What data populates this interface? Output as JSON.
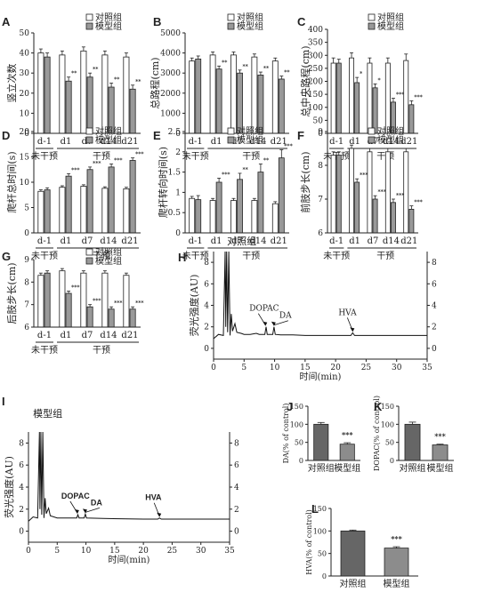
{
  "chart_data": [
    {
      "id": "A",
      "type": "bar",
      "panel_label": "A",
      "ylabel": "竖立次数",
      "ylim": [
        0,
        50
      ],
      "yticks": [
        0,
        10,
        20,
        30,
        40,
        50
      ],
      "categories": [
        "d-1",
        "d1",
        "d7",
        "d14",
        "d21"
      ],
      "series": [
        {
          "name": "对照组",
          "values": [
            40,
            39,
            41,
            39,
            38
          ],
          "errors": [
            2,
            2,
            2,
            2,
            2
          ],
          "color": "#ffffff"
        },
        {
          "name": "模型组",
          "values": [
            38,
            26,
            28,
            23,
            22
          ],
          "errors": [
            2,
            2,
            2,
            2,
            2
          ],
          "color": "#999999"
        }
      ],
      "significance": [
        "",
        "**",
        "**",
        "**",
        "**"
      ],
      "group_labels": [
        "未干预",
        "干预"
      ]
    },
    {
      "id": "B",
      "type": "bar",
      "panel_label": "B",
      "ylabel": "总路程(cm)",
      "ylim": [
        0,
        5000
      ],
      "yticks": [
        0,
        1000,
        2000,
        3000,
        4000,
        5000
      ],
      "categories": [
        "d-1",
        "d1",
        "d7",
        "d14",
        "d21"
      ],
      "series": [
        {
          "name": "对照组",
          "values": [
            3600,
            3900,
            3900,
            3800,
            3600
          ],
          "errors": [
            150,
            150,
            150,
            150,
            150
          ],
          "color": "#ffffff"
        },
        {
          "name": "模型组",
          "values": [
            3700,
            3200,
            3000,
            2900,
            2700
          ],
          "errors": [
            150,
            150,
            150,
            150,
            150
          ],
          "color": "#999999"
        }
      ],
      "significance": [
        "",
        "**",
        "**",
        "**",
        "**"
      ],
      "group_labels": [
        "未干预",
        "干预"
      ]
    },
    {
      "id": "C",
      "type": "bar",
      "panel_label": "C",
      "ylabel": "总中央路程(cm)",
      "ylim": [
        0,
        400
      ],
      "yticks": [
        0,
        50,
        100,
        150,
        200,
        250,
        300,
        350,
        400
      ],
      "categories": [
        "d-1",
        "d1",
        "d7",
        "d14",
        "d21"
      ],
      "series": [
        {
          "name": "对照组",
          "values": [
            270,
            290,
            270,
            270,
            280
          ],
          "errors": [
            20,
            20,
            20,
            20,
            25
          ],
          "color": "#ffffff"
        },
        {
          "name": "模型组",
          "values": [
            270,
            195,
            175,
            120,
            110
          ],
          "errors": [
            15,
            20,
            15,
            15,
            15
          ],
          "color": "#999999"
        }
      ],
      "significance": [
        "",
        "*",
        "*",
        "***",
        "***"
      ],
      "group_labels": [
        "未干预",
        "干预"
      ]
    },
    {
      "id": "D",
      "type": "bar",
      "panel_label": "D",
      "ylabel": "爬杆总时间(s)",
      "ylim": [
        0,
        20
      ],
      "yticks": [
        0,
        5,
        10,
        15,
        20
      ],
      "categories": [
        "d-1",
        "d1",
        "d7",
        "d14",
        "d21"
      ],
      "series": [
        {
          "name": "对照组",
          "values": [
            8.2,
            9.0,
            9.2,
            8.8,
            8.7
          ],
          "errors": [
            0.3,
            0.3,
            0.3,
            0.3,
            0.3
          ],
          "color": "#ffffff"
        },
        {
          "name": "模型组",
          "values": [
            8.5,
            11.2,
            12.5,
            13.0,
            14.3
          ],
          "errors": [
            0.4,
            0.5,
            0.5,
            0.6,
            0.5
          ],
          "color": "#999999"
        }
      ],
      "significance": [
        "",
        "***",
        "***",
        "***",
        "***"
      ],
      "group_labels": [
        "未干预",
        "干预"
      ]
    },
    {
      "id": "E",
      "type": "bar",
      "panel_label": "E",
      "ylabel": "爬杆转向时间(s)",
      "ylim": [
        0,
        2.5
      ],
      "yticks": [
        0,
        0.5,
        1.0,
        1.5,
        2.0,
        2.5
      ],
      "categories": [
        "d-1",
        "d1",
        "d7",
        "d14",
        "d21"
      ],
      "series": [
        {
          "name": "对照组",
          "values": [
            0.85,
            0.8,
            0.8,
            0.8,
            0.72
          ],
          "errors": [
            0.05,
            0.05,
            0.05,
            0.05,
            0.05
          ],
          "color": "#ffffff"
        },
        {
          "name": "模型组",
          "values": [
            0.82,
            1.25,
            1.32,
            1.5,
            1.85
          ],
          "errors": [
            0.1,
            0.1,
            0.15,
            0.2,
            0.2
          ],
          "color": "#999999"
        }
      ],
      "significance": [
        "",
        "***",
        "**",
        "**",
        "***"
      ],
      "group_labels": [
        "未干预",
        "干预"
      ]
    },
    {
      "id": "F",
      "type": "bar",
      "panel_label": "F",
      "ylabel": "前肢步长(cm)",
      "ylim": [
        6,
        9
      ],
      "yticks": [
        6,
        7,
        8,
        9
      ],
      "categories": [
        "d-1",
        "d1",
        "d7",
        "d14",
        "d21"
      ],
      "series": [
        {
          "name": "对照组",
          "values": [
            8.3,
            8.5,
            8.4,
            8.4,
            8.4
          ],
          "errors": [
            0.1,
            0.1,
            0.1,
            0.1,
            0.1
          ],
          "color": "#ffffff"
        },
        {
          "name": "模型组",
          "values": [
            8.3,
            7.5,
            7.0,
            6.9,
            6.7
          ],
          "errors": [
            0.1,
            0.1,
            0.1,
            0.1,
            0.1
          ],
          "color": "#999999"
        }
      ],
      "significance": [
        "",
        "***",
        "***",
        "***",
        "***"
      ],
      "group_labels": [
        "未干预",
        "干预"
      ]
    },
    {
      "id": "G",
      "type": "bar",
      "panel_label": "G",
      "ylabel": "后肢步长(cm)",
      "ylim": [
        6,
        9
      ],
      "yticks": [
        6,
        7,
        8,
        9
      ],
      "categories": [
        "d-1",
        "d1",
        "d7",
        "d14",
        "d21"
      ],
      "series": [
        {
          "name": "对照组",
          "values": [
            8.3,
            8.5,
            8.4,
            8.4,
            8.3
          ],
          "errors": [
            0.1,
            0.1,
            0.1,
            0.1,
            0.1
          ],
          "color": "#ffffff"
        },
        {
          "name": "模型组",
          "values": [
            8.4,
            7.5,
            6.9,
            6.8,
            6.8
          ],
          "errors": [
            0.1,
            0.1,
            0.1,
            0.1,
            0.1
          ],
          "color": "#999999"
        }
      ],
      "significance": [
        "",
        "***",
        "***",
        "***",
        "***"
      ],
      "group_labels": [
        "未干预",
        "干预"
      ]
    },
    {
      "id": "H",
      "type": "line",
      "panel_label": "H",
      "title": "对照组",
      "xlabel": "时间(min)",
      "ylabel": "荧光强度(AU)",
      "xlim": [
        0,
        35
      ],
      "xticks": [
        0,
        5,
        10,
        15,
        20,
        25,
        30,
        35
      ],
      "ylim": [
        -1,
        9
      ],
      "yticks": [
        0,
        2,
        4,
        6,
        8
      ],
      "points": [
        [
          0,
          0.9
        ],
        [
          0.8,
          1.3
        ],
        [
          1.6,
          1.2
        ],
        [
          1.9,
          9
        ],
        [
          2.0,
          2
        ],
        [
          2.15,
          9
        ],
        [
          2.3,
          1.5
        ],
        [
          2.5,
          9
        ],
        [
          2.7,
          1.2
        ],
        [
          2.9,
          3.2
        ],
        [
          3.1,
          1.6
        ],
        [
          3.5,
          2.3
        ],
        [
          3.8,
          1.5
        ],
        [
          4.5,
          1.4
        ],
        [
          5,
          1.3
        ],
        [
          6,
          1.3
        ],
        [
          7,
          1.4
        ],
        [
          7.5,
          1.3
        ],
        [
          8.4,
          1.3
        ],
        [
          8.6,
          2.0
        ],
        [
          8.8,
          1.3
        ],
        [
          9.7,
          1.3
        ],
        [
          9.9,
          2.0
        ],
        [
          10.1,
          1.3
        ],
        [
          11,
          1.25
        ],
        [
          13,
          1.25
        ],
        [
          15,
          1.2
        ],
        [
          20,
          1.2
        ],
        [
          22.5,
          1.2
        ],
        [
          22.8,
          1.45
        ],
        [
          23.1,
          1.2
        ],
        [
          27,
          1.2
        ],
        [
          30,
          1.2
        ],
        [
          35,
          1.2
        ]
      ],
      "annotations": [
        {
          "text": "DOPAC",
          "x": 8.5,
          "y": 2.0
        },
        {
          "text": "DA",
          "x": 9.9,
          "y": 2.0
        },
        {
          "text": "HVA",
          "x": 22.8,
          "y": 1.45
        }
      ]
    },
    {
      "id": "I",
      "type": "line",
      "panel_label": "I",
      "title": "模型组",
      "xlabel": "时间(min)",
      "ylabel": "荧光强度(AU)",
      "xlim": [
        0,
        35
      ],
      "xticks": [
        0,
        5,
        10,
        15,
        20,
        25,
        30,
        35
      ],
      "ylim": [
        -1,
        9
      ],
      "yticks": [
        0,
        2,
        4,
        6,
        8
      ],
      "points": [
        [
          0,
          0.9
        ],
        [
          0.8,
          1.3
        ],
        [
          1.6,
          1.2
        ],
        [
          1.9,
          9
        ],
        [
          2.0,
          2
        ],
        [
          2.15,
          9
        ],
        [
          2.3,
          1.5
        ],
        [
          2.5,
          9
        ],
        [
          2.7,
          1.2
        ],
        [
          2.9,
          3.0
        ],
        [
          3.1,
          1.6
        ],
        [
          3.5,
          2.1
        ],
        [
          3.8,
          1.4
        ],
        [
          5,
          1.2
        ],
        [
          6,
          1.2
        ],
        [
          7.5,
          1.2
        ],
        [
          8.4,
          1.2
        ],
        [
          8.6,
          1.5
        ],
        [
          8.8,
          1.2
        ],
        [
          9.7,
          1.2
        ],
        [
          9.9,
          1.55
        ],
        [
          10.1,
          1.2
        ],
        [
          13,
          1.15
        ],
        [
          20,
          1.1
        ],
        [
          22.5,
          1.1
        ],
        [
          22.8,
          1.2
        ],
        [
          23.1,
          1.1
        ],
        [
          30,
          1.1
        ],
        [
          35,
          1.1
        ]
      ],
      "annotations": [
        {
          "text": "DOPAC",
          "x": 8.5,
          "y": 1.5
        },
        {
          "text": "DA",
          "x": 9.9,
          "y": 1.55
        },
        {
          "text": "HVA",
          "x": 22.8,
          "y": 1.2
        }
      ]
    },
    {
      "id": "J",
      "type": "bar",
      "panel_label": "J",
      "ylabel": "DA(% of control)",
      "ylim": [
        0,
        150
      ],
      "yticks": [
        0,
        50,
        100,
        150
      ],
      "categories": [
        "对照组",
        "模型组"
      ],
      "values": [
        100,
        45
      ],
      "errors": [
        5,
        4
      ],
      "colors": [
        "#666666",
        "#8c8c8c"
      ],
      "significance": [
        "",
        "***"
      ]
    },
    {
      "id": "K",
      "type": "bar",
      "panel_label": "K",
      "ylabel": "DOPAC(% of control)",
      "ylim": [
        0,
        150
      ],
      "yticks": [
        0,
        50,
        100,
        150
      ],
      "categories": [
        "对照组",
        "模型组"
      ],
      "values": [
        100,
        43
      ],
      "errors": [
        6,
        2
      ],
      "colors": [
        "#666666",
        "#8c8c8c"
      ],
      "significance": [
        "",
        "***"
      ]
    },
    {
      "id": "L",
      "type": "bar",
      "panel_label": "L",
      "ylabel": "HVA(% of control)",
      "ylim": [
        0,
        150
      ],
      "yticks": [
        0,
        50,
        100,
        150
      ],
      "categories": [
        "对照组",
        "模型组"
      ],
      "values": [
        100,
        62
      ],
      "errors": [
        2,
        3
      ],
      "colors": [
        "#666666",
        "#8c8c8c"
      ],
      "significance": [
        "",
        "***"
      ]
    }
  ]
}
